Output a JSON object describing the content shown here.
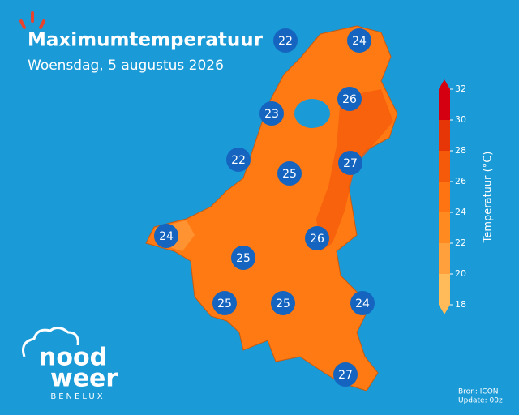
{
  "header": {
    "title": "Maximumtemperatuur",
    "subtitle": "Woensdag, 5 augustus 2026"
  },
  "markers": {
    "values": [
      22,
      24,
      26,
      23,
      22,
      25,
      27,
      24,
      26,
      25,
      25,
      25,
      24,
      27
    ],
    "color": "#1565c0"
  },
  "colorbar": {
    "label": "Temperatuur (°C)",
    "ticks": [
      18,
      20,
      22,
      24,
      26,
      28,
      30,
      32
    ],
    "colors": [
      "#ffbb5a",
      "#ffa03c",
      "#ff8a20",
      "#ff7412",
      "#f5590a",
      "#e63608",
      "#d40012"
    ]
  },
  "source": {
    "line1": "Bron: ICON",
    "line2": "Update: 00z"
  },
  "logo": {
    "word1": "nood",
    "word2": "weer",
    "tagline": "BENELUX"
  }
}
